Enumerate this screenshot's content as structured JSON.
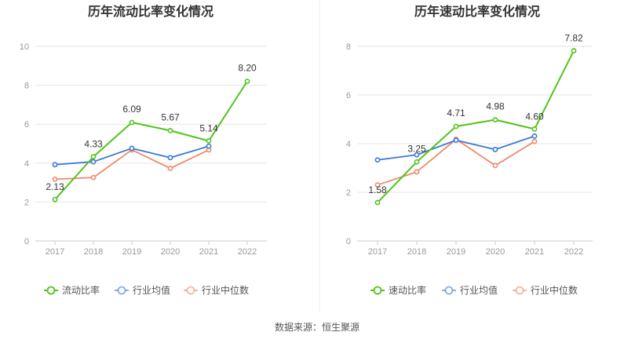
{
  "source_label": "数据来源：恒生聚源",
  "colors": {
    "primary": "#52c41a",
    "avg": "#3a78d4",
    "median": "#f0896a",
    "grid": "#e6e6e6",
    "axis": "#cccccc"
  },
  "chart_data": [
    {
      "type": "line",
      "title": "历年流动比率变化情况",
      "x": [
        "2017",
        "2018",
        "2019",
        "2020",
        "2021",
        "2022"
      ],
      "ylim": [
        0,
        10
      ],
      "yticks": [
        0,
        2,
        4,
        6,
        8,
        10
      ],
      "grid": true,
      "legend_position": "bottom",
      "series": [
        {
          "name": "流动比率",
          "values": [
            2.13,
            4.33,
            6.09,
            5.67,
            5.14,
            8.2
          ],
          "labels": [
            "2.13",
            "4.33",
            "6.09",
            "5.67",
            "5.14",
            "8.20"
          ]
        },
        {
          "name": "行业均值",
          "values": [
            3.92,
            4.07,
            4.76,
            4.28,
            4.87,
            null
          ]
        },
        {
          "name": "行业中位数",
          "values": [
            3.17,
            3.26,
            4.68,
            3.73,
            4.68,
            null
          ]
        }
      ]
    },
    {
      "type": "line",
      "title": "历年速动比率变化情况",
      "x": [
        "2017",
        "2018",
        "2019",
        "2020",
        "2021",
        "2022"
      ],
      "ylim": [
        0,
        8
      ],
      "yticks": [
        0,
        2,
        4,
        6,
        8
      ],
      "grid": true,
      "legend_position": "bottom",
      "series": [
        {
          "name": "速动比率",
          "values": [
            1.58,
            3.25,
            4.71,
            4.98,
            4.6,
            7.82
          ],
          "labels": [
            "1.58",
            "3.25",
            "4.71",
            "4.98",
            "4.60",
            "7.82"
          ]
        },
        {
          "name": "行业均值",
          "values": [
            3.33,
            3.54,
            4.14,
            3.76,
            4.31,
            null
          ]
        },
        {
          "name": "行业中位数",
          "values": [
            2.3,
            2.84,
            4.18,
            3.1,
            4.09,
            null
          ]
        }
      ]
    }
  ]
}
